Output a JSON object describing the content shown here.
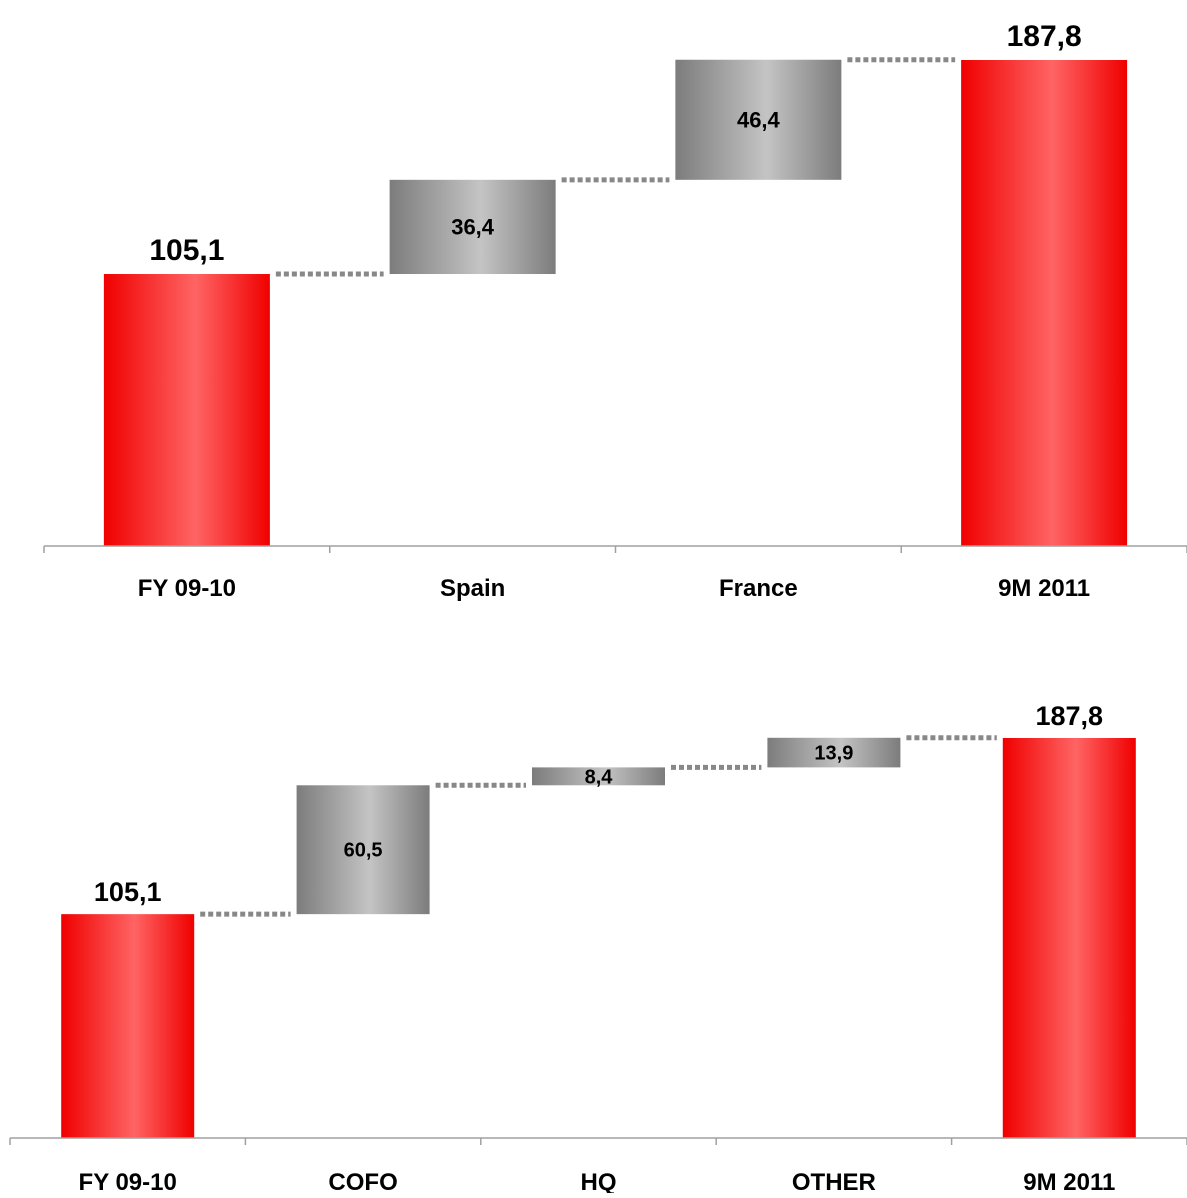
{
  "chart_data": [
    {
      "type": "waterfall",
      "categories": [
        "FY 09-10",
        "Spain",
        "France",
        "9M 2011"
      ],
      "bars": [
        {
          "kind": "total",
          "base": 0,
          "value": 105.1,
          "label": "105,1"
        },
        {
          "kind": "delta",
          "base": 105.1,
          "value": 36.4,
          "label": "36,4"
        },
        {
          "kind": "delta",
          "base": 141.5,
          "value": 46.4,
          "label": "46,4"
        },
        {
          "kind": "total",
          "base": 0,
          "value": 187.8,
          "label": "187,8"
        }
      ],
      "ylim": [
        0,
        187.8
      ],
      "grid": false,
      "legend": "none",
      "total_color": "#ff2020",
      "delta_color": "#9a9a9a"
    },
    {
      "type": "waterfall",
      "categories": [
        "FY 09-10",
        "COFO",
        "HQ",
        "OTHER",
        "9M 2011"
      ],
      "bars": [
        {
          "kind": "total",
          "base": 0,
          "value": 105.1,
          "label": "105,1"
        },
        {
          "kind": "delta",
          "base": 105.1,
          "value": 60.5,
          "label": "60,5"
        },
        {
          "kind": "delta",
          "base": 165.6,
          "value": 8.4,
          "label": "8,4"
        },
        {
          "kind": "delta",
          "base": 174.0,
          "value": 13.9,
          "label": "13,9"
        },
        {
          "kind": "total",
          "base": 0,
          "value": 187.8,
          "label": "187,8"
        }
      ],
      "ylim": [
        0,
        187.8
      ],
      "grid": false,
      "legend": "none",
      "total_color": "#ff2020",
      "delta_color": "#9a9a9a"
    }
  ]
}
